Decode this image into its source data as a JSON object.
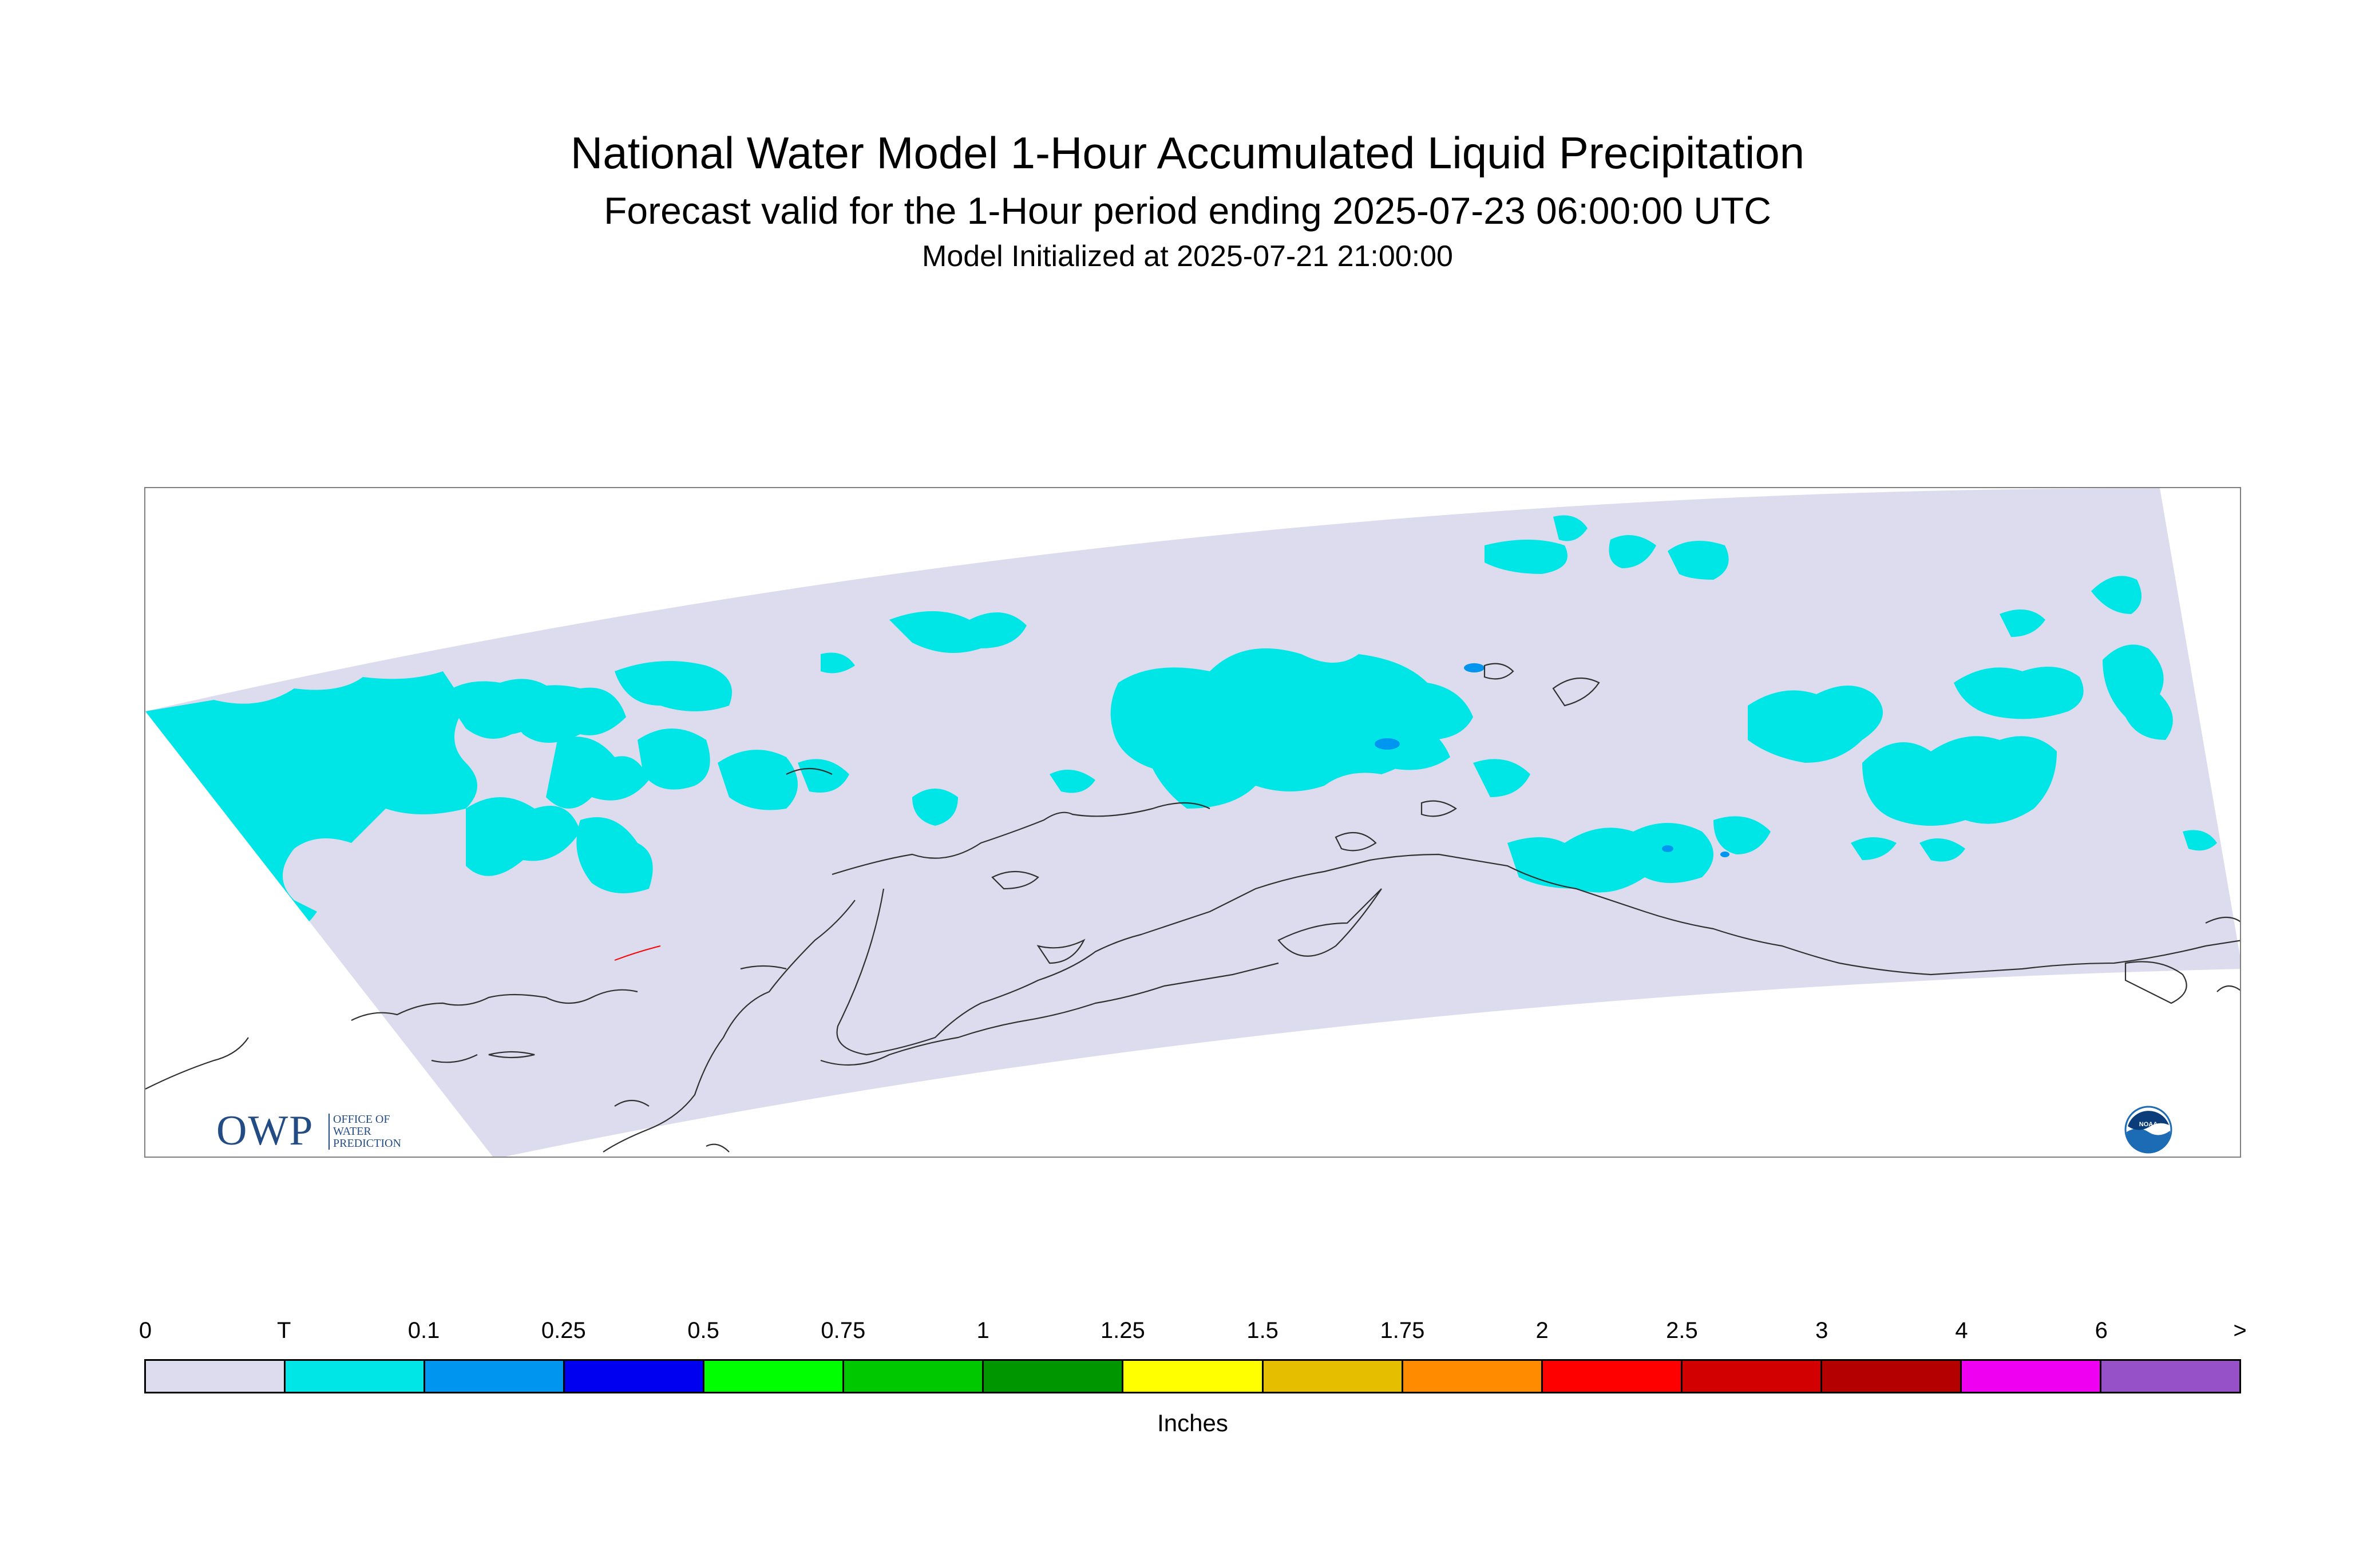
{
  "title": "National Water Model 1-Hour Accumulated Liquid Precipitation",
  "subtitle": "Forecast valid for the 1-Hour period ending 2025-07-23 06:00:00 UTC",
  "initialized": "Model Initialized at 2025-07-21 21:00:00",
  "map": {
    "region": "Alaska",
    "domain_color": "#dcdcee",
    "coastline_color": "#303030",
    "frame_color": "#7f7f7f"
  },
  "logos": {
    "owp": {
      "letters": "OWP",
      "lines": [
        "OFFICE OF",
        "WATER",
        "PREDICTION"
      ],
      "color": "#234c84",
      "icon": "owp-logo"
    },
    "noaa": {
      "text": "NOAA",
      "color": "#1c6bb5",
      "icon": "noaa-logo"
    }
  },
  "legend": {
    "units": "Inches",
    "tick_labels": [
      "0",
      "T",
      "0.1",
      "0.25",
      "0.5",
      "0.75",
      "1",
      "1.25",
      "1.5",
      "1.75",
      "2",
      "2.5",
      "3",
      "4",
      "6",
      ">"
    ],
    "colors": [
      "#dcdcee",
      "#00e6e6",
      "#0096f0",
      "#0000f0",
      "#00ff00",
      "#00c800",
      "#009600",
      "#ffff00",
      "#e6be00",
      "#ff8c00",
      "#ff0000",
      "#d20000",
      "#b40000",
      "#f000f0",
      "#9650c8"
    ]
  },
  "precip_levels": {
    "trace": "#00e6e6",
    "light": "#0096f0"
  }
}
